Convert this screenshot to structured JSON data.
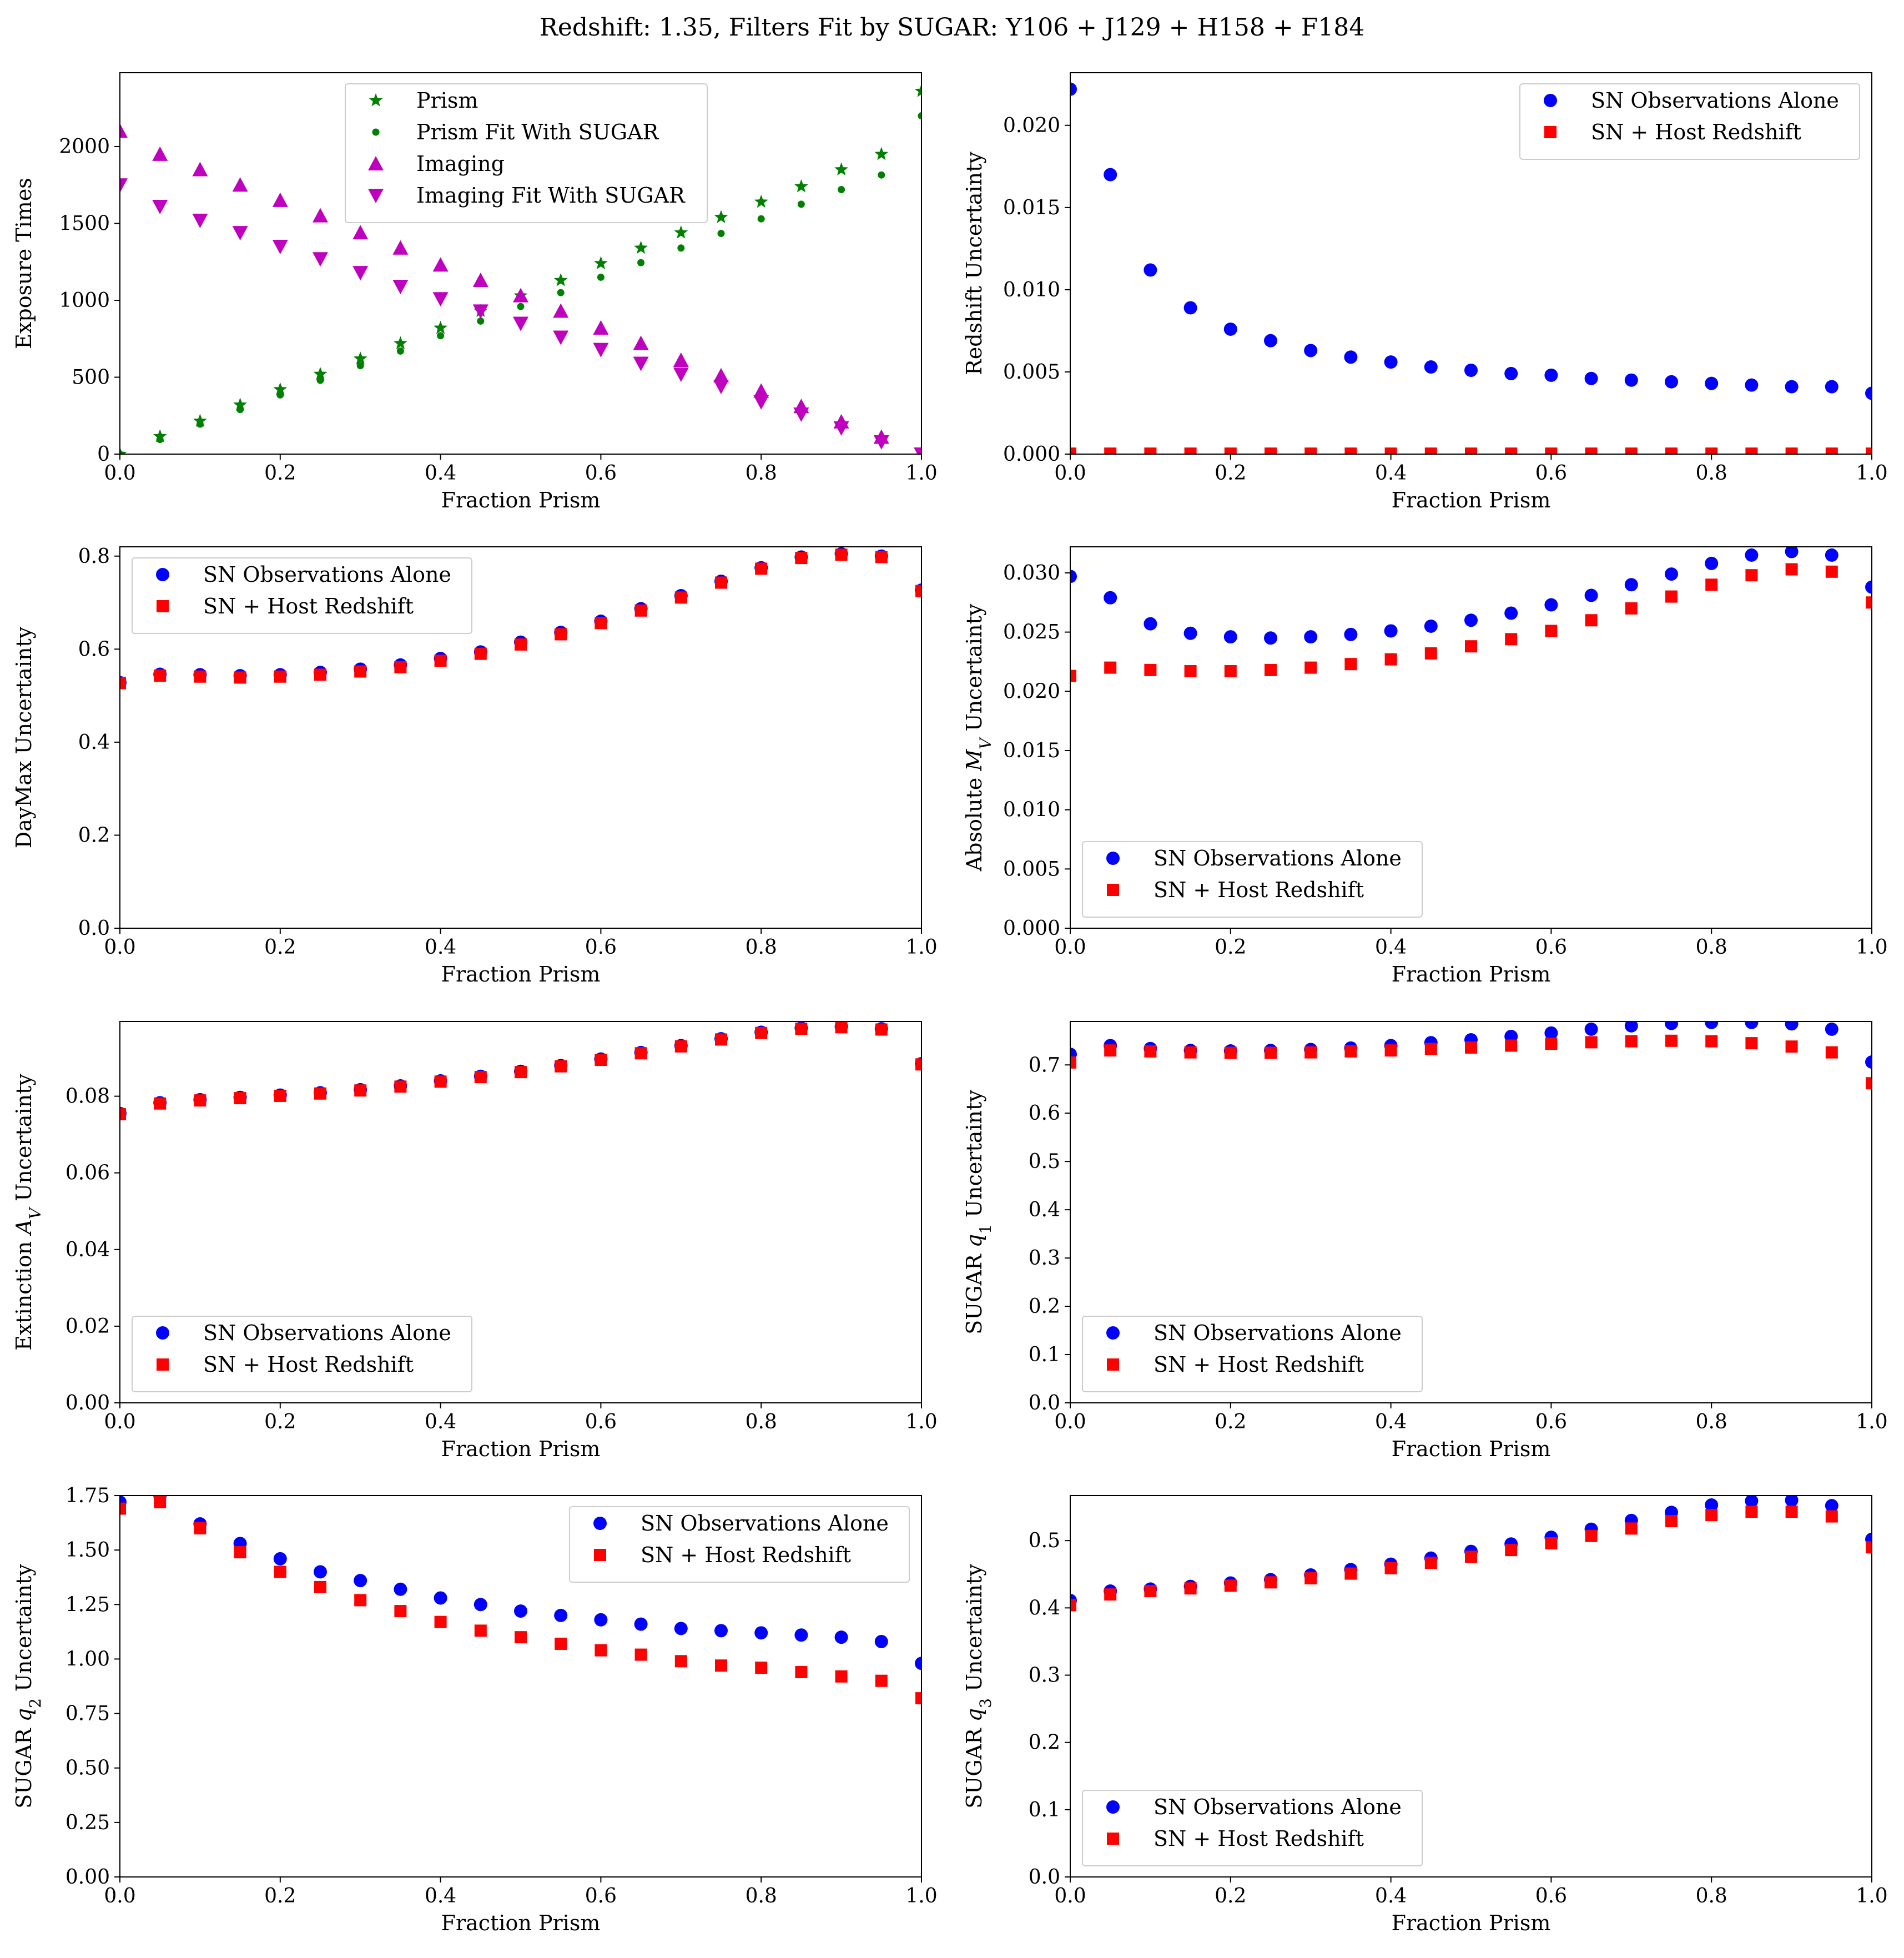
{
  "figure": {
    "suptitle": "Redshift: 1.35, Filters Fit by SUGAR: Y106 + J129 + H158 + F184",
    "colors": {
      "green": "#008000",
      "magenta": "#bf00bf",
      "blue": "#0000ff",
      "red": "#ff0000"
    }
  },
  "chart_data": [
    {
      "type": "scatter",
      "id": "exposure",
      "xlabel": "Fraction Prism",
      "ylabel": "Exposure Times",
      "xlim": [
        0,
        1
      ],
      "ylim": [
        0,
        2480
      ],
      "xticks": [
        0,
        0.2,
        0.4,
        0.6,
        0.8,
        1.0
      ],
      "xtick_labels": [
        "0.0",
        "0.2",
        "0.4",
        "0.6",
        "0.8",
        "1.0"
      ],
      "yticks": [
        0,
        500,
        1000,
        1500,
        2000
      ],
      "ytick_labels": [
        "0",
        "500",
        "1000",
        "1500",
        "2000"
      ],
      "legend_position": "top-center",
      "x": [
        0,
        0.05,
        0.1,
        0.15,
        0.2,
        0.25,
        0.3,
        0.35,
        0.4,
        0.45,
        0.5,
        0.55,
        0.6,
        0.65,
        0.7,
        0.75,
        0.8,
        0.85,
        0.9,
        0.95,
        1.0
      ],
      "series": [
        {
          "name": "Prism",
          "marker": "star",
          "color": "#008000",
          "values": [
            0,
            115,
            215,
            320,
            420,
            520,
            620,
            720,
            820,
            930,
            1030,
            1130,
            1240,
            1340,
            1440,
            1540,
            1640,
            1740,
            1850,
            1950,
            2360
          ]
        },
        {
          "name": "Prism Fit With SUGAR",
          "marker": "dot",
          "color": "#008000",
          "values": [
            0,
            95,
            195,
            290,
            385,
            480,
            575,
            670,
            770,
            865,
            960,
            1050,
            1150,
            1245,
            1340,
            1435,
            1530,
            1625,
            1720,
            1815,
            2200
          ]
        },
        {
          "name": "Imaging",
          "marker": "triangle-up",
          "color": "#bf00bf",
          "values": [
            2100,
            1950,
            1850,
            1750,
            1650,
            1550,
            1440,
            1340,
            1230,
            1130,
            1030,
            930,
            820,
            720,
            610,
            510,
            410,
            310,
            210,
            110,
            0
          ]
        },
        {
          "name": "Imaging Fit With SUGAR",
          "marker": "triangle-down",
          "color": "#bf00bf",
          "values": [
            1750,
            1610,
            1520,
            1440,
            1350,
            1270,
            1180,
            1090,
            1010,
            930,
            850,
            760,
            680,
            590,
            520,
            440,
            340,
            260,
            170,
            80,
            0
          ]
        }
      ]
    },
    {
      "type": "scatter",
      "id": "redshift",
      "xlabel": "Fraction Prism",
      "ylabel": "Redshift Uncertainty",
      "xlim": [
        0,
        1
      ],
      "ylim": [
        0,
        0.0232
      ],
      "xticks": [
        0,
        0.2,
        0.4,
        0.6,
        0.8,
        1.0
      ],
      "xtick_labels": [
        "0.0",
        "0.2",
        "0.4",
        "0.6",
        "0.8",
        "1.0"
      ],
      "yticks": [
        0,
        0.005,
        0.01,
        0.015,
        0.02
      ],
      "ytick_labels": [
        "0.000",
        "0.005",
        "0.010",
        "0.015",
        "0.020"
      ],
      "legend_position": "top-right",
      "x": [
        0,
        0.05,
        0.1,
        0.15,
        0.2,
        0.25,
        0.3,
        0.35,
        0.4,
        0.45,
        0.5,
        0.55,
        0.6,
        0.65,
        0.7,
        0.75,
        0.8,
        0.85,
        0.9,
        0.95,
        1.0
      ],
      "series": [
        {
          "name": "SN Observations Alone",
          "marker": "circle",
          "color": "#0000ff",
          "values": [
            0.0222,
            0.017,
            0.0112,
            0.0089,
            0.0076,
            0.0069,
            0.0063,
            0.0059,
            0.0056,
            0.0053,
            0.0051,
            0.0049,
            0.0048,
            0.0046,
            0.0045,
            0.0044,
            0.0043,
            0.0042,
            0.0041,
            0.0041,
            0.0037
          ]
        },
        {
          "name": "SN + Host Redshift",
          "marker": "square",
          "color": "#ff0000",
          "values": [
            3e-05,
            3e-05,
            3e-05,
            3e-05,
            3e-05,
            3e-05,
            3e-05,
            3e-05,
            3e-05,
            3e-05,
            3e-05,
            3e-05,
            3e-05,
            3e-05,
            3e-05,
            3e-05,
            3e-05,
            3e-05,
            3e-05,
            3e-05,
            3e-05
          ]
        }
      ]
    },
    {
      "type": "scatter",
      "id": "daymax",
      "xlabel": "Fraction Prism",
      "ylabel": "DayMax Uncertainty",
      "xlim": [
        0,
        1
      ],
      "ylim": [
        0,
        0.82
      ],
      "xticks": [
        0,
        0.2,
        0.4,
        0.6,
        0.8,
        1.0
      ],
      "xtick_labels": [
        "0.0",
        "0.2",
        "0.4",
        "0.6",
        "0.8",
        "1.0"
      ],
      "yticks": [
        0,
        0.2,
        0.4,
        0.6,
        0.8
      ],
      "ytick_labels": [
        "0.0",
        "0.2",
        "0.4",
        "0.6",
        "0.8"
      ],
      "legend_position": "top-left",
      "x": [
        0,
        0.05,
        0.1,
        0.15,
        0.2,
        0.25,
        0.3,
        0.35,
        0.4,
        0.45,
        0.5,
        0.55,
        0.6,
        0.65,
        0.7,
        0.75,
        0.8,
        0.85,
        0.9,
        0.95,
        1.0
      ],
      "series": [
        {
          "name": "SN Observations Alone",
          "marker": "circle",
          "color": "#0000ff",
          "values": [
            0.528,
            0.546,
            0.545,
            0.543,
            0.545,
            0.55,
            0.557,
            0.566,
            0.58,
            0.594,
            0.615,
            0.636,
            0.66,
            0.687,
            0.715,
            0.746,
            0.775,
            0.798,
            0.805,
            0.8,
            0.727
          ]
        },
        {
          "name": "SN + Host Redshift",
          "marker": "square",
          "color": "#ff0000",
          "values": [
            0.527,
            0.543,
            0.541,
            0.539,
            0.541,
            0.545,
            0.552,
            0.561,
            0.575,
            0.59,
            0.61,
            0.632,
            0.656,
            0.683,
            0.711,
            0.743,
            0.773,
            0.796,
            0.803,
            0.798,
            0.725
          ]
        }
      ]
    },
    {
      "type": "scatter",
      "id": "absmag",
      "xlabel": "Fraction Prism",
      "ylabel": "Absolute M_V Uncertainty",
      "xlim": [
        0,
        1
      ],
      "ylim": [
        0,
        0.0322
      ],
      "xticks": [
        0,
        0.2,
        0.4,
        0.6,
        0.8,
        1.0
      ],
      "xtick_labels": [
        "0.0",
        "0.2",
        "0.4",
        "0.6",
        "0.8",
        "1.0"
      ],
      "yticks": [
        0,
        0.005,
        0.01,
        0.015,
        0.02,
        0.025,
        0.03
      ],
      "ytick_labels": [
        "0.000",
        "0.005",
        "0.010",
        "0.015",
        "0.020",
        "0.025",
        "0.030"
      ],
      "legend_position": "bottom-left",
      "x": [
        0,
        0.05,
        0.1,
        0.15,
        0.2,
        0.25,
        0.3,
        0.35,
        0.4,
        0.45,
        0.5,
        0.55,
        0.6,
        0.65,
        0.7,
        0.75,
        0.8,
        0.85,
        0.9,
        0.95,
        1.0
      ],
      "series": [
        {
          "name": "SN Observations Alone",
          "marker": "circle",
          "color": "#0000ff",
          "values": [
            0.0297,
            0.0279,
            0.0257,
            0.0249,
            0.0246,
            0.0245,
            0.0246,
            0.0248,
            0.0251,
            0.0255,
            0.026,
            0.0266,
            0.0273,
            0.0281,
            0.029,
            0.0299,
            0.0308,
            0.0315,
            0.0318,
            0.0315,
            0.0288
          ]
        },
        {
          "name": "SN + Host Redshift",
          "marker": "square",
          "color": "#ff0000",
          "values": [
            0.0213,
            0.022,
            0.0218,
            0.0217,
            0.0217,
            0.0218,
            0.022,
            0.0223,
            0.0227,
            0.0232,
            0.0238,
            0.0244,
            0.0251,
            0.026,
            0.027,
            0.028,
            0.029,
            0.0298,
            0.0303,
            0.0301,
            0.0275
          ]
        }
      ]
    },
    {
      "type": "scatter",
      "id": "extinction",
      "xlabel": "Fraction Prism",
      "ylabel": "Extinction A_V Uncertainty",
      "xlim": [
        0,
        1
      ],
      "ylim": [
        0,
        0.0995
      ],
      "xticks": [
        0,
        0.2,
        0.4,
        0.6,
        0.8,
        1.0
      ],
      "xtick_labels": [
        "0.0",
        "0.2",
        "0.4",
        "0.6",
        "0.8",
        "1.0"
      ],
      "yticks": [
        0,
        0.02,
        0.04,
        0.06,
        0.08
      ],
      "ytick_labels": [
        "0.00",
        "0.02",
        "0.04",
        "0.06",
        "0.08"
      ],
      "legend_position": "bottom-left",
      "x": [
        0,
        0.05,
        0.1,
        0.15,
        0.2,
        0.25,
        0.3,
        0.35,
        0.4,
        0.45,
        0.5,
        0.55,
        0.6,
        0.65,
        0.7,
        0.75,
        0.8,
        0.85,
        0.9,
        0.95,
        1.0
      ],
      "series": [
        {
          "name": "SN Observations Alone",
          "marker": "circle",
          "color": "#0000ff",
          "values": [
            0.0755,
            0.0783,
            0.0791,
            0.0797,
            0.0803,
            0.0809,
            0.0817,
            0.0827,
            0.084,
            0.0852,
            0.0865,
            0.088,
            0.0897,
            0.0914,
            0.0932,
            0.095,
            0.0967,
            0.0978,
            0.0982,
            0.0976,
            0.0885
          ]
        },
        {
          "name": "SN + Host Redshift",
          "marker": "square",
          "color": "#ff0000",
          "values": [
            0.0753,
            0.0781,
            0.0789,
            0.0795,
            0.0801,
            0.0807,
            0.0815,
            0.0825,
            0.0838,
            0.085,
            0.0863,
            0.0878,
            0.0895,
            0.0912,
            0.093,
            0.0948,
            0.0965,
            0.0976,
            0.098,
            0.0974,
            0.0883
          ]
        }
      ]
    },
    {
      "type": "scatter",
      "id": "q1",
      "xlabel": "Fraction Prism",
      "ylabel": "SUGAR q_1 Uncertainty",
      "xlim": [
        0,
        1
      ],
      "ylim": [
        0,
        0.79
      ],
      "xticks": [
        0,
        0.2,
        0.4,
        0.6,
        0.8,
        1.0
      ],
      "xtick_labels": [
        "0.0",
        "0.2",
        "0.4",
        "0.6",
        "0.8",
        "1.0"
      ],
      "yticks": [
        0,
        0.1,
        0.2,
        0.3,
        0.4,
        0.5,
        0.6,
        0.7
      ],
      "ytick_labels": [
        "0.0",
        "0.1",
        "0.2",
        "0.3",
        "0.4",
        "0.5",
        "0.6",
        "0.7"
      ],
      "legend_position": "bottom-left",
      "x": [
        0,
        0.05,
        0.1,
        0.15,
        0.2,
        0.25,
        0.3,
        0.35,
        0.4,
        0.45,
        0.5,
        0.55,
        0.6,
        0.65,
        0.7,
        0.75,
        0.8,
        0.85,
        0.9,
        0.95,
        1.0
      ],
      "series": [
        {
          "name": "SN Observations Alone",
          "marker": "circle",
          "color": "#0000ff",
          "values": [
            0.722,
            0.74,
            0.734,
            0.73,
            0.729,
            0.73,
            0.732,
            0.735,
            0.74,
            0.746,
            0.752,
            0.759,
            0.766,
            0.774,
            0.781,
            0.786,
            0.788,
            0.788,
            0.785,
            0.774,
            0.706
          ]
        },
        {
          "name": "SN + Host Redshift",
          "marker": "square",
          "color": "#ff0000",
          "values": [
            0.705,
            0.73,
            0.728,
            0.726,
            0.725,
            0.725,
            0.726,
            0.728,
            0.73,
            0.733,
            0.736,
            0.74,
            0.744,
            0.747,
            0.749,
            0.75,
            0.749,
            0.745,
            0.738,
            0.726,
            0.662
          ]
        }
      ]
    },
    {
      "type": "scatter",
      "id": "q2",
      "xlabel": "Fraction Prism",
      "ylabel": "SUGAR q_2 Uncertainty",
      "xlim": [
        0,
        1
      ],
      "ylim": [
        0,
        1.75
      ],
      "xticks": [
        0,
        0.2,
        0.4,
        0.6,
        0.8,
        1.0
      ],
      "xtick_labels": [
        "0.0",
        "0.2",
        "0.4",
        "0.6",
        "0.8",
        "1.0"
      ],
      "yticks": [
        0,
        0.25,
        0.5,
        0.75,
        1.0,
        1.25,
        1.5,
        1.75
      ],
      "ytick_labels": [
        "0.00",
        "0.25",
        "0.50",
        "0.75",
        "1.00",
        "1.25",
        "1.50",
        "1.75"
      ],
      "legend_position": "top-right",
      "x": [
        0,
        0.05,
        0.1,
        0.15,
        0.2,
        0.25,
        0.3,
        0.35,
        0.4,
        0.45,
        0.5,
        0.55,
        0.6,
        0.65,
        0.7,
        0.75,
        0.8,
        0.85,
        0.9,
        0.95,
        1.0
      ],
      "series": [
        {
          "name": "SN Observations Alone",
          "marker": "circle",
          "color": "#0000ff",
          "values": [
            1.72,
            1.75,
            1.62,
            1.53,
            1.46,
            1.4,
            1.36,
            1.32,
            1.28,
            1.25,
            1.22,
            1.2,
            1.18,
            1.16,
            1.14,
            1.13,
            1.12,
            1.11,
            1.1,
            1.08,
            0.98
          ]
        },
        {
          "name": "SN + Host Redshift",
          "marker": "square",
          "color": "#ff0000",
          "values": [
            1.69,
            1.72,
            1.6,
            1.49,
            1.4,
            1.33,
            1.27,
            1.22,
            1.17,
            1.13,
            1.1,
            1.07,
            1.04,
            1.02,
            0.99,
            0.97,
            0.96,
            0.94,
            0.92,
            0.9,
            0.82
          ]
        }
      ]
    },
    {
      "type": "scatter",
      "id": "q3",
      "xlabel": "Fraction Prism",
      "ylabel": "SUGAR q_3 Uncertainty",
      "xlim": [
        0,
        1
      ],
      "ylim": [
        0,
        0.567
      ],
      "xticks": [
        0,
        0.2,
        0.4,
        0.6,
        0.8,
        1.0
      ],
      "xtick_labels": [
        "0.0",
        "0.2",
        "0.4",
        "0.6",
        "0.8",
        "1.0"
      ],
      "yticks": [
        0,
        0.1,
        0.2,
        0.3,
        0.4,
        0.5
      ],
      "ytick_labels": [
        "0.0",
        "0.1",
        "0.2",
        "0.3",
        "0.4",
        "0.5"
      ],
      "legend_position": "bottom-left",
      "x": [
        0,
        0.05,
        0.1,
        0.15,
        0.2,
        0.25,
        0.3,
        0.35,
        0.4,
        0.45,
        0.5,
        0.55,
        0.6,
        0.65,
        0.7,
        0.75,
        0.8,
        0.85,
        0.9,
        0.95,
        1.0
      ],
      "series": [
        {
          "name": "SN Observations Alone",
          "marker": "circle",
          "color": "#0000ff",
          "values": [
            0.411,
            0.425,
            0.428,
            0.432,
            0.437,
            0.442,
            0.449,
            0.457,
            0.465,
            0.474,
            0.484,
            0.495,
            0.505,
            0.517,
            0.53,
            0.542,
            0.553,
            0.559,
            0.56,
            0.552,
            0.502
          ]
        },
        {
          "name": "SN + Host Redshift",
          "marker": "square",
          "color": "#ff0000",
          "values": [
            0.404,
            0.42,
            0.425,
            0.429,
            0.433,
            0.438,
            0.444,
            0.451,
            0.459,
            0.467,
            0.476,
            0.486,
            0.496,
            0.507,
            0.518,
            0.529,
            0.538,
            0.543,
            0.543,
            0.536,
            0.49
          ]
        }
      ]
    }
  ]
}
